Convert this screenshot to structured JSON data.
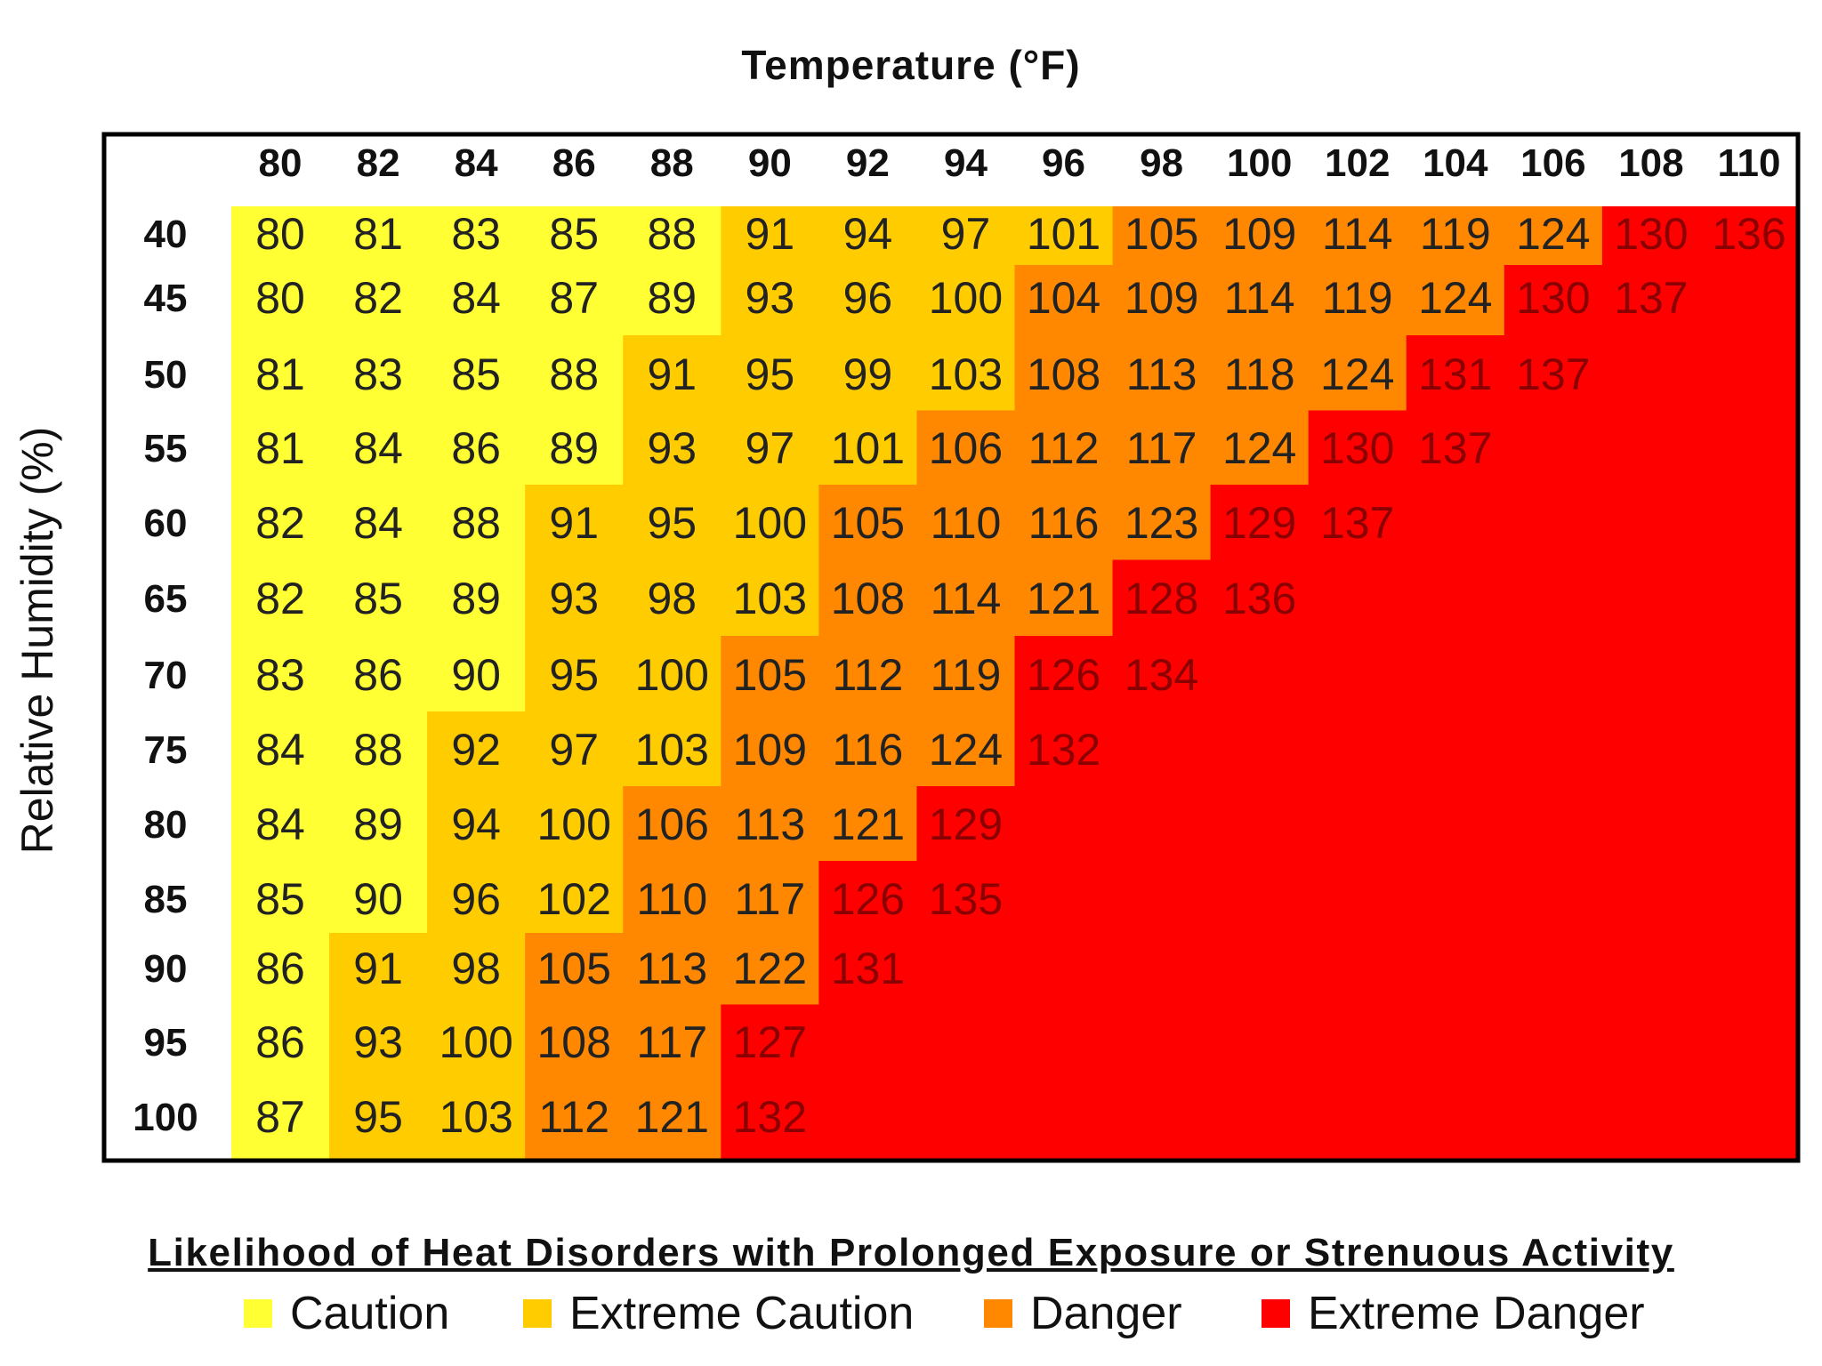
{
  "chart_data": {
    "type": "heatmap",
    "title": "Temperature (°F)",
    "ylabel": "Relative Humidity (%)",
    "temperatures": [
      "80",
      "82",
      "84",
      "86",
      "88",
      "90",
      "92",
      "94",
      "96",
      "98",
      "100",
      "102",
      "104",
      "106",
      "108",
      "110"
    ],
    "humidities": [
      "40",
      "45",
      "50",
      "55",
      "60",
      "65",
      "70",
      "75",
      "80",
      "85",
      "90",
      "95",
      "100"
    ],
    "heat_index": [
      [
        80,
        81,
        83,
        85,
        88,
        91,
        94,
        97,
        101,
        105,
        109,
        114,
        119,
        124,
        130,
        136
      ],
      [
        80,
        82,
        84,
        87,
        89,
        93,
        96,
        100,
        104,
        109,
        114,
        119,
        124,
        130,
        137,
        null
      ],
      [
        81,
        83,
        85,
        88,
        91,
        95,
        99,
        103,
        108,
        113,
        118,
        124,
        131,
        137,
        null,
        null
      ],
      [
        81,
        84,
        86,
        89,
        93,
        97,
        101,
        106,
        112,
        117,
        124,
        130,
        137,
        null,
        null,
        null
      ],
      [
        82,
        84,
        88,
        91,
        95,
        100,
        105,
        110,
        116,
        123,
        129,
        137,
        null,
        null,
        null,
        null
      ],
      [
        82,
        85,
        89,
        93,
        98,
        103,
        108,
        114,
        121,
        128,
        136,
        null,
        null,
        null,
        null,
        null
      ],
      [
        83,
        86,
        90,
        95,
        100,
        105,
        112,
        119,
        126,
        134,
        null,
        null,
        null,
        null,
        null,
        null
      ],
      [
        84,
        88,
        92,
        97,
        103,
        109,
        116,
        124,
        132,
        null,
        null,
        null,
        null,
        null,
        null,
        null
      ],
      [
        84,
        89,
        94,
        100,
        106,
        113,
        121,
        129,
        null,
        null,
        null,
        null,
        null,
        null,
        null,
        null
      ],
      [
        85,
        90,
        96,
        102,
        110,
        117,
        126,
        135,
        null,
        null,
        null,
        null,
        null,
        null,
        null,
        null
      ],
      [
        86,
        91,
        98,
        105,
        113,
        122,
        131,
        null,
        null,
        null,
        null,
        null,
        null,
        null,
        null,
        null
      ],
      [
        86,
        93,
        100,
        108,
        117,
        127,
        null,
        null,
        null,
        null,
        null,
        null,
        null,
        null,
        null,
        null
      ],
      [
        87,
        95,
        103,
        112,
        121,
        132,
        null,
        null,
        null,
        null,
        null,
        null,
        null,
        null,
        null,
        null
      ]
    ],
    "categories": [
      [
        0,
        0,
        0,
        0,
        0,
        1,
        1,
        1,
        1,
        2,
        2,
        2,
        2,
        2,
        3,
        3
      ],
      [
        0,
        0,
        0,
        0,
        0,
        1,
        1,
        1,
        2,
        2,
        2,
        2,
        2,
        3,
        3,
        3
      ],
      [
        0,
        0,
        0,
        0,
        1,
        1,
        1,
        1,
        2,
        2,
        2,
        2,
        3,
        3,
        3,
        3
      ],
      [
        0,
        0,
        0,
        0,
        1,
        1,
        1,
        2,
        2,
        2,
        2,
        3,
        3,
        3,
        3,
        3
      ],
      [
        0,
        0,
        0,
        1,
        1,
        1,
        2,
        2,
        2,
        2,
        3,
        3,
        3,
        3,
        3,
        3
      ],
      [
        0,
        0,
        0,
        1,
        1,
        1,
        2,
        2,
        2,
        3,
        3,
        3,
        3,
        3,
        3,
        3
      ],
      [
        0,
        0,
        0,
        1,
        1,
        2,
        2,
        2,
        3,
        3,
        3,
        3,
        3,
        3,
        3,
        3
      ],
      [
        0,
        0,
        1,
        1,
        1,
        2,
        2,
        2,
        3,
        3,
        3,
        3,
        3,
        3,
        3,
        3
      ],
      [
        0,
        0,
        1,
        1,
        2,
        2,
        2,
        3,
        3,
        3,
        3,
        3,
        3,
        3,
        3,
        3
      ],
      [
        0,
        0,
        1,
        1,
        2,
        2,
        3,
        3,
        3,
        3,
        3,
        3,
        3,
        3,
        3,
        3
      ],
      [
        0,
        1,
        1,
        2,
        2,
        2,
        3,
        3,
        3,
        3,
        3,
        3,
        3,
        3,
        3,
        3
      ],
      [
        0,
        1,
        1,
        2,
        2,
        3,
        3,
        3,
        3,
        3,
        3,
        3,
        3,
        3,
        3,
        3
      ],
      [
        0,
        1,
        1,
        2,
        2,
        3,
        3,
        3,
        3,
        3,
        3,
        3,
        3,
        3,
        3,
        3
      ]
    ],
    "colors": [
      "#ffff33",
      "#ffcc00",
      "#ff8800",
      "#ff0000"
    ],
    "legend_placement": "bottom"
  },
  "legend": {
    "title": "Likelihood of Heat Disorders with Prolonged Exposure or Strenuous Activity",
    "items": [
      {
        "label": "Caution",
        "color": "#ffff33"
      },
      {
        "label": "Extreme Caution",
        "color": "#ffcc00"
      },
      {
        "label": "Danger",
        "color": "#ff8800"
      },
      {
        "label": "Extreme Danger",
        "color": "#ff0000"
      }
    ]
  }
}
